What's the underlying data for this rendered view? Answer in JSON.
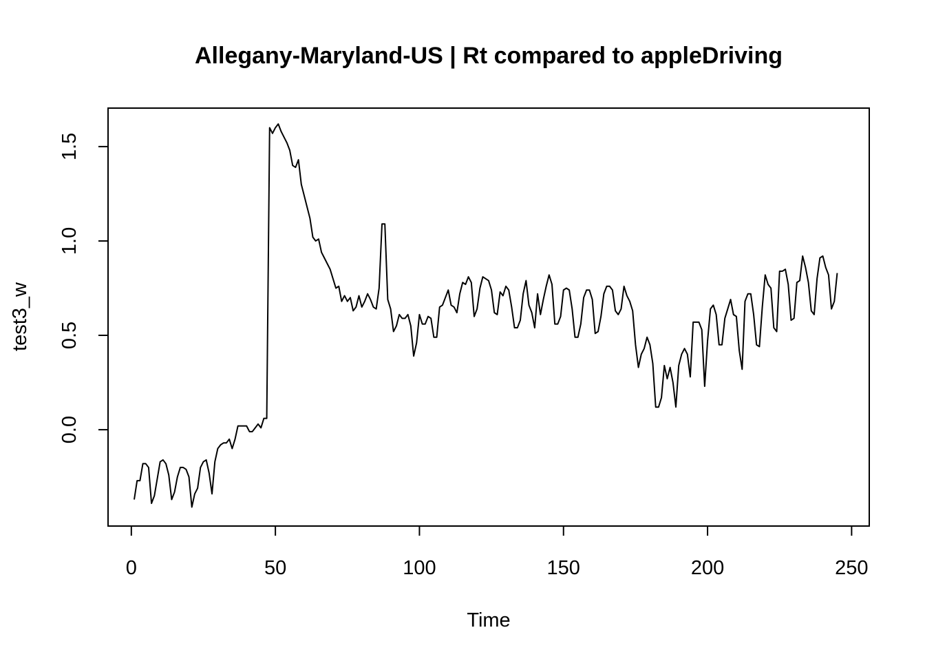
{
  "chart_data": {
    "type": "line",
    "title": "Allegany-Maryland-US | Rt compared to appleDriving",
    "xlabel": "Time",
    "ylabel": "test3_w",
    "xlim": [
      1,
      248
    ],
    "ylim": [
      -0.39,
      1.62
    ],
    "x_ticks": [
      0,
      50,
      100,
      150,
      200,
      250
    ],
    "y_ticks": [
      0.0,
      0.5,
      1.0,
      1.5
    ],
    "x_tick_labels": [
      "0",
      "50",
      "100",
      "150",
      "200",
      "250"
    ],
    "y_tick_labels": [
      "0.0",
      "0.5",
      "1.0",
      "1.5"
    ],
    "grid": false,
    "line_color": "#000000",
    "series": [
      {
        "x_start": 1,
        "values": [
          -0.37,
          -0.27,
          -0.27,
          -0.18,
          -0.18,
          -0.2,
          -0.39,
          -0.35,
          -0.26,
          -0.17,
          -0.16,
          -0.18,
          -0.24,
          -0.37,
          -0.33,
          -0.25,
          -0.2,
          -0.2,
          -0.21,
          -0.25,
          -0.41,
          -0.34,
          -0.31,
          -0.2,
          -0.17,
          -0.16,
          -0.23,
          -0.34,
          -0.17,
          -0.1,
          -0.08,
          -0.07,
          -0.07,
          -0.05,
          -0.1,
          -0.05,
          0.02,
          0.02,
          0.02,
          0.02,
          -0.01,
          -0.01,
          0.01,
          0.03,
          0.01,
          0.06,
          0.06,
          1.6,
          1.57,
          1.6,
          1.62,
          1.58,
          1.55,
          1.52,
          1.48,
          1.4,
          1.39,
          1.43,
          1.3,
          1.24,
          1.18,
          1.12,
          1.02,
          1.0,
          1.01,
          0.94,
          0.91,
          0.88,
          0.85,
          0.8,
          0.75,
          0.76,
          0.68,
          0.71,
          0.68,
          0.7,
          0.63,
          0.65,
          0.71,
          0.65,
          0.68,
          0.72,
          0.69,
          0.65,
          0.64,
          0.75,
          1.09,
          1.09,
          0.69,
          0.64,
          0.52,
          0.55,
          0.61,
          0.59,
          0.59,
          0.61,
          0.55,
          0.39,
          0.46,
          0.61,
          0.56,
          0.56,
          0.6,
          0.59,
          0.49,
          0.49,
          0.65,
          0.66,
          0.7,
          0.74,
          0.66,
          0.65,
          0.62,
          0.72,
          0.78,
          0.77,
          0.81,
          0.78,
          0.6,
          0.64,
          0.75,
          0.81,
          0.8,
          0.79,
          0.74,
          0.62,
          0.61,
          0.73,
          0.71,
          0.76,
          0.74,
          0.65,
          0.54,
          0.54,
          0.58,
          0.72,
          0.79,
          0.66,
          0.62,
          0.54,
          0.72,
          0.61,
          0.69,
          0.76,
          0.82,
          0.77,
          0.56,
          0.56,
          0.6,
          0.74,
          0.75,
          0.74,
          0.64,
          0.49,
          0.49,
          0.56,
          0.7,
          0.74,
          0.74,
          0.69,
          0.51,
          0.52,
          0.6,
          0.72,
          0.76,
          0.76,
          0.74,
          0.63,
          0.61,
          0.64,
          0.76,
          0.71,
          0.68,
          0.63,
          0.45,
          0.33,
          0.4,
          0.43,
          0.49,
          0.45,
          0.35,
          0.12,
          0.12,
          0.17,
          0.34,
          0.27,
          0.33,
          0.25,
          0.12,
          0.34,
          0.4,
          0.43,
          0.4,
          0.28,
          0.57,
          0.57,
          0.57,
          0.53,
          0.23,
          0.47,
          0.64,
          0.66,
          0.61,
          0.45,
          0.45,
          0.59,
          0.64,
          0.69,
          0.61,
          0.6,
          0.42,
          0.32,
          0.68,
          0.72,
          0.72,
          0.61,
          0.45,
          0.44,
          0.65,
          0.82,
          0.77,
          0.75,
          0.54,
          0.52,
          0.84,
          0.84,
          0.85,
          0.77,
          0.58,
          0.59,
          0.78,
          0.79,
          0.92,
          0.86,
          0.78,
          0.63,
          0.61,
          0.8,
          0.91,
          0.92,
          0.86,
          0.82,
          0.64,
          0.68,
          0.83
        ]
      }
    ]
  }
}
